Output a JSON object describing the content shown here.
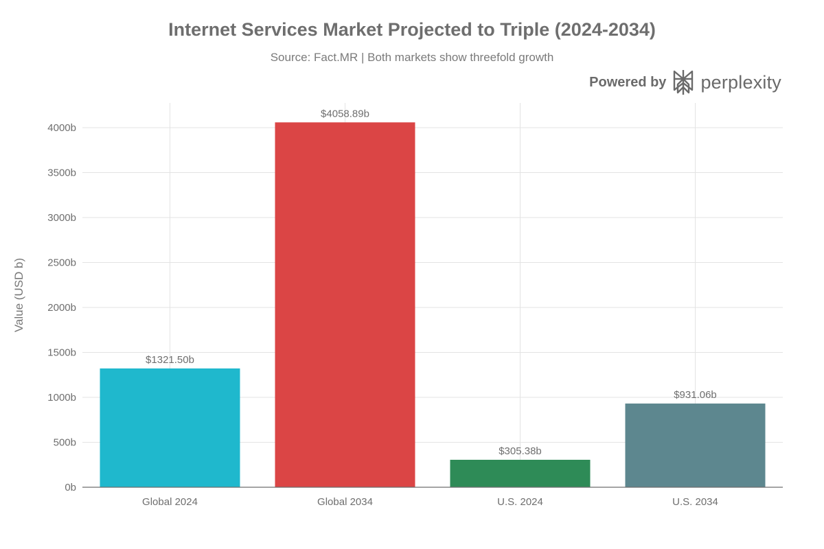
{
  "title": "Internet Services Market Projected to Triple (2024-2034)",
  "subtitle": "Source: Fact.MR | Both markets show threefold growth",
  "brand": {
    "powered_by": "Powered by",
    "wordmark": "perplexity"
  },
  "chart_data": {
    "type": "bar",
    "title": "Internet Services Market Projected to Triple (2024-2034)",
    "subtitle": "Source: Fact.MR | Both markets show threefold growth",
    "xlabel": "",
    "ylabel": "Value (USD b)",
    "categories": [
      "Global 2024",
      "Global 2034",
      "U.S. 2024",
      "U.S. 2034"
    ],
    "values": [
      1321.5,
      4058.89,
      305.38,
      931.06
    ],
    "data_labels": [
      "$1321.50b",
      "$4058.89b",
      "$305.38b",
      "$931.06b"
    ],
    "colors": [
      "#1fb8cd",
      "#db4545",
      "#2e8b57",
      "#5d878f"
    ],
    "ylim": [
      0,
      4275
    ],
    "yticks": [
      0,
      500,
      1000,
      1500,
      2000,
      2500,
      3000,
      3500,
      4000
    ],
    "ytick_labels": [
      "0b",
      "500b",
      "1000b",
      "1500b",
      "2000b",
      "2500b",
      "3000b",
      "3500b",
      "4000b"
    ],
    "grid": true,
    "legend": "none"
  }
}
